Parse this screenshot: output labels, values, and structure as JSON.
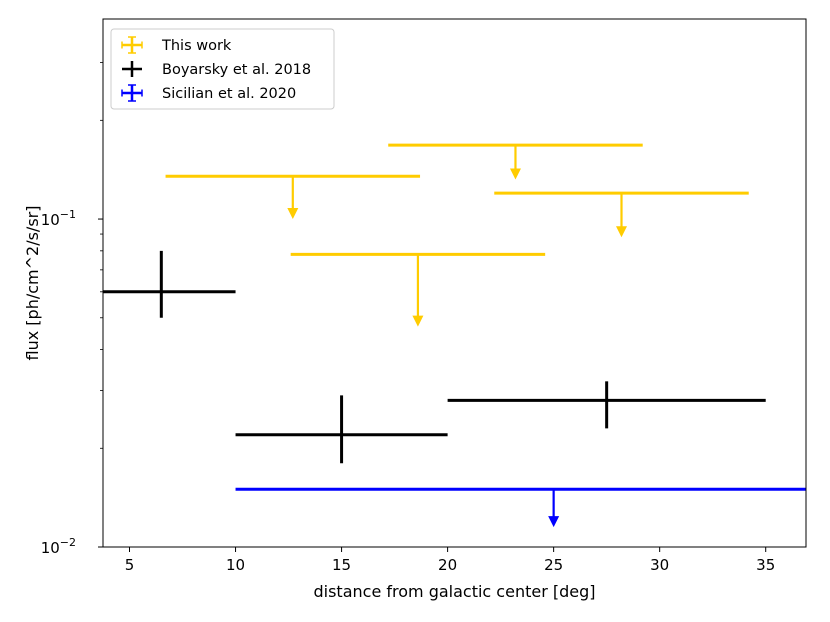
{
  "chart_data": {
    "type": "scatter",
    "title": "",
    "xlabel": "distance from galactic center [deg]",
    "ylabel": "flux [ph/cm^2/s/sr]",
    "xlim": [
      3.75,
      36.9
    ],
    "ylim_log10": [
      -2.0,
      -0.39
    ],
    "yscale": "log",
    "grid": false,
    "legend_position": "upper-left",
    "x_ticks": [
      5,
      10,
      15,
      20,
      25,
      30,
      35
    ],
    "y_major_ticks": [
      {
        "value": 0.01,
        "base": "10",
        "exp": "−2"
      },
      {
        "value": 0.1,
        "base": "10",
        "exp": "−1"
      }
    ],
    "y_minor_ticks": [
      0.02,
      0.03,
      0.04,
      0.05,
      0.06,
      0.07,
      0.08,
      0.09,
      0.2,
      0.3
    ],
    "series": [
      {
        "name": "This work",
        "color": "#ffcc00",
        "kind": "upper_limits",
        "points": [
          {
            "x": 12.7,
            "xerr": 6.0,
            "y": 0.135,
            "arrow_to": 0.1
          },
          {
            "x": 23.2,
            "xerr": 6.0,
            "y": 0.168,
            "arrow_to": 0.132
          },
          {
            "x": 28.2,
            "xerr": 6.0,
            "y": 0.12,
            "arrow_to": 0.088
          },
          {
            "x": 18.6,
            "xerr": 6.0,
            "y": 0.078,
            "arrow_to": 0.047
          }
        ]
      },
      {
        "name": "Boyarsky et al. 2018",
        "color": "#000000",
        "kind": "errorbars",
        "points": [
          {
            "x": 6.5,
            "xerr": 3.5,
            "y": 0.06,
            "ylo": 0.05,
            "yhi": 0.08
          },
          {
            "x": 15.0,
            "xerr": 5.0,
            "y": 0.022,
            "ylo": 0.018,
            "yhi": 0.029
          },
          {
            "x": 27.5,
            "xerr": 7.5,
            "y": 0.028,
            "ylo": 0.023,
            "yhi": 0.032
          }
        ]
      },
      {
        "name": "Sicilian et al. 2020",
        "color": "#0000ff",
        "kind": "upper_limits",
        "points": [
          {
            "x": 25.0,
            "xerr": 15.0,
            "y": 0.015,
            "arrow_to": 0.0115
          }
        ]
      }
    ]
  }
}
